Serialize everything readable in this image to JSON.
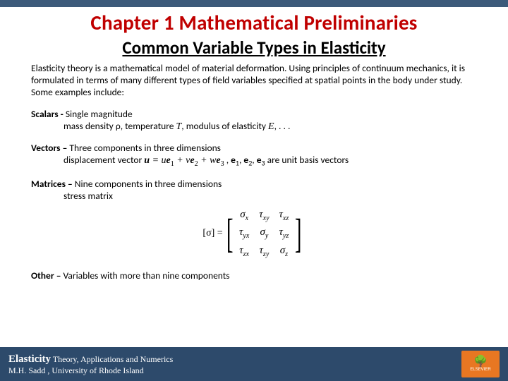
{
  "chapter_title": "Chapter 1 Mathematical Preliminaries",
  "subtitle": "Common Variable Types in Elasticity",
  "intro": "Elasticity theory is a mathematical model of material deformation.  Using principles of continuum mechanics, it is  formulated in terms of many different types of field variables specified at spatial points in the body under study.  Some examples include:",
  "scalars": {
    "heading": "Scalars - ",
    "desc": "Single magnitude",
    "detail_pre": "mass density ρ, temperature ",
    "detail_post": ", modulus of elasticity ",
    "detail_end": ", . . .",
    "sym_T": "T",
    "sym_E": "E"
  },
  "vectors": {
    "heading": "Vectors – ",
    "desc": "Three components in three dimensions",
    "detail_pre": "displacement vector  ",
    "detail_post": " ,",
    "unit_text": " are unit basis vectors"
  },
  "matrices": {
    "heading": "Matrices – ",
    "desc": "Nine components in three dimensions",
    "detail": "stress matrix"
  },
  "other": {
    "heading": "Other – ",
    "desc": "Variables with more than nine components"
  },
  "footer": {
    "title": "Elasticity",
    "subtitle": "  Theory, Applications and Numerics",
    "author": "M.H. Sadd  , University of Rhode Island",
    "publisher": "ELSEVIER"
  },
  "colors": {
    "strip": "#3c5a7a",
    "title": "#c00000",
    "footer_bg": "#2d4a6b",
    "logo_bg": "#e87722"
  }
}
